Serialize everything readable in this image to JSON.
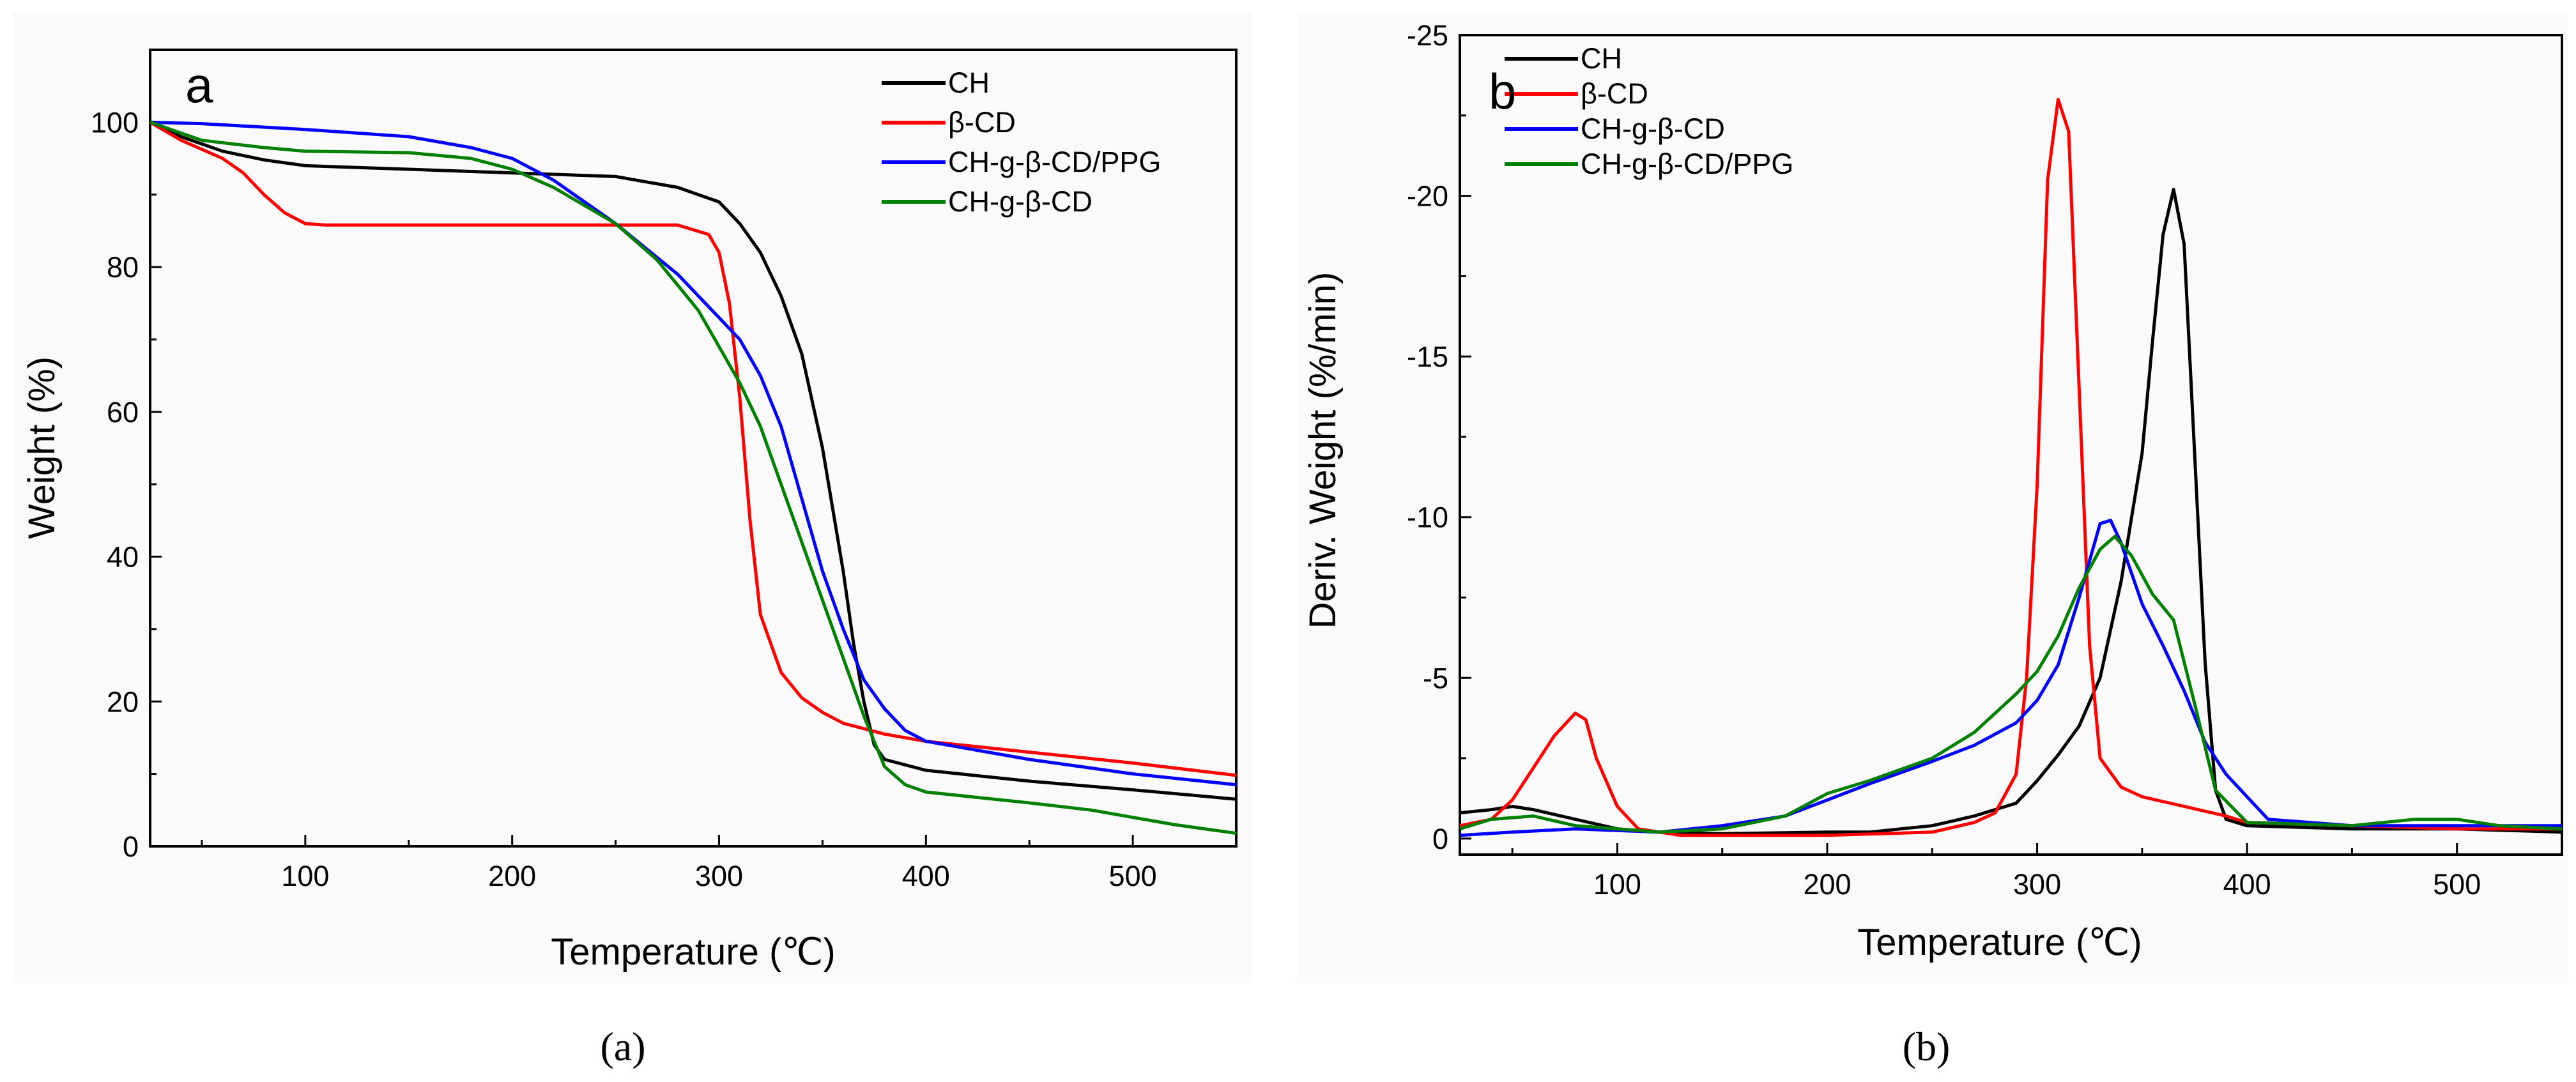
{
  "chart_data": [
    {
      "type": "line",
      "panel_label": "a",
      "caption": "(a)",
      "xlabel": "Temperature (℃)",
      "ylabel": "Weight (%)",
      "xlim": [
        25,
        550
      ],
      "ylim": [
        0,
        110
      ],
      "xticks": [
        100,
        200,
        300,
        400,
        500
      ],
      "yticks": [
        0,
        20,
        40,
        60,
        80,
        100
      ],
      "legend_position": "top-right",
      "series": [
        {
          "name": "CH",
          "color": "#000000",
          "points": [
            [
              25,
              100
            ],
            [
              40,
              98
            ],
            [
              60,
              96
            ],
            [
              80,
              94.8
            ],
            [
              100,
              94
            ],
            [
              150,
              93.5
            ],
            [
              200,
              93
            ],
            [
              250,
              92.5
            ],
            [
              280,
              91
            ],
            [
              300,
              89
            ],
            [
              310,
              86
            ],
            [
              320,
              82
            ],
            [
              330,
              76
            ],
            [
              340,
              68
            ],
            [
              350,
              55
            ],
            [
              360,
              38
            ],
            [
              365,
              28
            ],
            [
              370,
              20
            ],
            [
              375,
              14
            ],
            [
              380,
              12
            ],
            [
              400,
              10.5
            ],
            [
              450,
              9
            ],
            [
              500,
              7.8
            ],
            [
              550,
              6.5
            ]
          ]
        },
        {
          "name": "β-CD",
          "color": "#ff0000",
          "points": [
            [
              25,
              100
            ],
            [
              40,
              97.5
            ],
            [
              60,
              95
            ],
            [
              70,
              93
            ],
            [
              80,
              90
            ],
            [
              90,
              87.5
            ],
            [
              100,
              86
            ],
            [
              110,
              85.8
            ],
            [
              150,
              85.8
            ],
            [
              200,
              85.8
            ],
            [
              250,
              85.8
            ],
            [
              280,
              85.8
            ],
            [
              295,
              84.5
            ],
            [
              300,
              82
            ],
            [
              305,
              75
            ],
            [
              310,
              62
            ],
            [
              315,
              45
            ],
            [
              320,
              32
            ],
            [
              330,
              24
            ],
            [
              340,
              20.5
            ],
            [
              350,
              18.5
            ],
            [
              360,
              17
            ],
            [
              380,
              15.5
            ],
            [
              400,
              14.5
            ],
            [
              450,
              13
            ],
            [
              500,
              11.5
            ],
            [
              550,
              9.8
            ]
          ]
        },
        {
          "name": "CH-g-β-CD/PPG",
          "color": "#0000ff",
          "points": [
            [
              25,
              100
            ],
            [
              50,
              99.8
            ],
            [
              100,
              99
            ],
            [
              150,
              98
            ],
            [
              180,
              96.5
            ],
            [
              200,
              95
            ],
            [
              220,
              92
            ],
            [
              250,
              86
            ],
            [
              280,
              79
            ],
            [
              300,
              73
            ],
            [
              310,
              70
            ],
            [
              320,
              65
            ],
            [
              330,
              58
            ],
            [
              340,
              48
            ],
            [
              350,
              38
            ],
            [
              360,
              30
            ],
            [
              370,
              23
            ],
            [
              380,
              19
            ],
            [
              390,
              16
            ],
            [
              400,
              14.5
            ],
            [
              450,
              12
            ],
            [
              500,
              10
            ],
            [
              550,
              8.5
            ]
          ]
        },
        {
          "name": "CH-g-β-CD",
          "color": "#008000",
          "points": [
            [
              25,
              100
            ],
            [
              50,
              97.5
            ],
            [
              80,
              96.5
            ],
            [
              100,
              96
            ],
            [
              150,
              95.8
            ],
            [
              180,
              95
            ],
            [
              200,
              93.5
            ],
            [
              220,
              91
            ],
            [
              250,
              86
            ],
            [
              270,
              81
            ],
            [
              290,
              74
            ],
            [
              300,
              69
            ],
            [
              310,
              64
            ],
            [
              320,
              58
            ],
            [
              330,
              50
            ],
            [
              340,
              42
            ],
            [
              350,
              34
            ],
            [
              360,
              26
            ],
            [
              370,
              18
            ],
            [
              380,
              11
            ],
            [
              390,
              8.5
            ],
            [
              400,
              7.5
            ],
            [
              450,
              6
            ],
            [
              480,
              5
            ],
            [
              500,
              4
            ],
            [
              520,
              3
            ],
            [
              550,
              1.8
            ]
          ]
        }
      ]
    },
    {
      "type": "line",
      "panel_label": "b",
      "caption": "(b)",
      "xlabel": "Temperature (℃)",
      "ylabel": "Deriv. Weight (%/min)",
      "xlim": [
        25,
        550
      ],
      "ylim": [
        0.5,
        -25
      ],
      "y_axis_inverted": true,
      "xticks": [
        100,
        200,
        300,
        400,
        500
      ],
      "yticks": [
        0,
        -5,
        -10,
        -15,
        -20,
        -25
      ],
      "legend_position": "top-left",
      "series": [
        {
          "name": "CH",
          "color": "#000000",
          "points": [
            [
              25,
              -0.8
            ],
            [
              40,
              -0.9
            ],
            [
              50,
              -1.0
            ],
            [
              60,
              -0.9
            ],
            [
              80,
              -0.6
            ],
            [
              100,
              -0.3
            ],
            [
              120,
              -0.2
            ],
            [
              150,
              -0.15
            ],
            [
              200,
              -0.2
            ],
            [
              220,
              -0.2
            ],
            [
              250,
              -0.4
            ],
            [
              270,
              -0.7
            ],
            [
              290,
              -1.1
            ],
            [
              300,
              -1.8
            ],
            [
              310,
              -2.6
            ],
            [
              320,
              -3.5
            ],
            [
              330,
              -5
            ],
            [
              340,
              -8
            ],
            [
              350,
              -12
            ],
            [
              355,
              -15.5
            ],
            [
              360,
              -18.8
            ],
            [
              365,
              -20.2
            ],
            [
              370,
              -18.5
            ],
            [
              375,
              -12
            ],
            [
              380,
              -5.5
            ],
            [
              385,
              -1.5
            ],
            [
              390,
              -0.6
            ],
            [
              400,
              -0.4
            ],
            [
              450,
              -0.3
            ],
            [
              500,
              -0.3
            ],
            [
              550,
              -0.2
            ]
          ]
        },
        {
          "name": "β-CD",
          "color": "#ff0000",
          "points": [
            [
              25,
              -0.4
            ],
            [
              40,
              -0.6
            ],
            [
              50,
              -1.2
            ],
            [
              60,
              -2.2
            ],
            [
              70,
              -3.2
            ],
            [
              80,
              -3.9
            ],
            [
              85,
              -3.7
            ],
            [
              90,
              -2.5
            ],
            [
              100,
              -1.0
            ],
            [
              110,
              -0.3
            ],
            [
              130,
              -0.1
            ],
            [
              150,
              -0.1
            ],
            [
              200,
              -0.1
            ],
            [
              250,
              -0.2
            ],
            [
              270,
              -0.5
            ],
            [
              280,
              -0.8
            ],
            [
              290,
              -2
            ],
            [
              295,
              -5
            ],
            [
              300,
              -11
            ],
            [
              305,
              -20.5
            ],
            [
              310,
              -23
            ],
            [
              315,
              -22
            ],
            [
              320,
              -14
            ],
            [
              325,
              -6
            ],
            [
              330,
              -2.5
            ],
            [
              340,
              -1.6
            ],
            [
              350,
              -1.3
            ],
            [
              370,
              -1.0
            ],
            [
              390,
              -0.7
            ],
            [
              400,
              -0.5
            ],
            [
              450,
              -0.4
            ],
            [
              500,
              -0.3
            ],
            [
              550,
              -0.3
            ]
          ]
        },
        {
          "name": "CH-g-β-CD",
          "color": "#0000ff",
          "points": [
            [
              25,
              -0.1
            ],
            [
              50,
              -0.2
            ],
            [
              80,
              -0.3
            ],
            [
              100,
              -0.25
            ],
            [
              120,
              -0.2
            ],
            [
              150,
              -0.4
            ],
            [
              180,
              -0.7
            ],
            [
              200,
              -1.2
            ],
            [
              220,
              -1.7
            ],
            [
              250,
              -2.4
            ],
            [
              270,
              -2.9
            ],
            [
              290,
              -3.6
            ],
            [
              300,
              -4.3
            ],
            [
              310,
              -5.4
            ],
            [
              320,
              -7.5
            ],
            [
              330,
              -9.8
            ],
            [
              335,
              -9.9
            ],
            [
              340,
              -9.2
            ],
            [
              350,
              -7.3
            ],
            [
              360,
              -6
            ],
            [
              370,
              -4.6
            ],
            [
              380,
              -3
            ],
            [
              390,
              -2
            ],
            [
              400,
              -1.3
            ],
            [
              410,
              -0.6
            ],
            [
              450,
              -0.4
            ],
            [
              500,
              -0.4
            ],
            [
              550,
              -0.4
            ]
          ]
        },
        {
          "name": "CH-g-β-CD/PPG",
          "color": "#008000",
          "points": [
            [
              25,
              -0.3
            ],
            [
              40,
              -0.6
            ],
            [
              60,
              -0.7
            ],
            [
              80,
              -0.4
            ],
            [
              100,
              -0.3
            ],
            [
              120,
              -0.2
            ],
            [
              150,
              -0.3
            ],
            [
              180,
              -0.7
            ],
            [
              200,
              -1.4
            ],
            [
              220,
              -1.8
            ],
            [
              250,
              -2.5
            ],
            [
              270,
              -3.3
            ],
            [
              290,
              -4.5
            ],
            [
              300,
              -5.2
            ],
            [
              310,
              -6.3
            ],
            [
              320,
              -7.8
            ],
            [
              330,
              -9
            ],
            [
              337,
              -9.4
            ],
            [
              345,
              -8.8
            ],
            [
              355,
              -7.6
            ],
            [
              365,
              -6.8
            ],
            [
              375,
              -4.2
            ],
            [
              385,
              -1.5
            ],
            [
              400,
              -0.5
            ],
            [
              450,
              -0.4
            ],
            [
              480,
              -0.6
            ],
            [
              500,
              -0.6
            ],
            [
              520,
              -0.4
            ],
            [
              550,
              -0.3
            ]
          ]
        }
      ]
    }
  ]
}
